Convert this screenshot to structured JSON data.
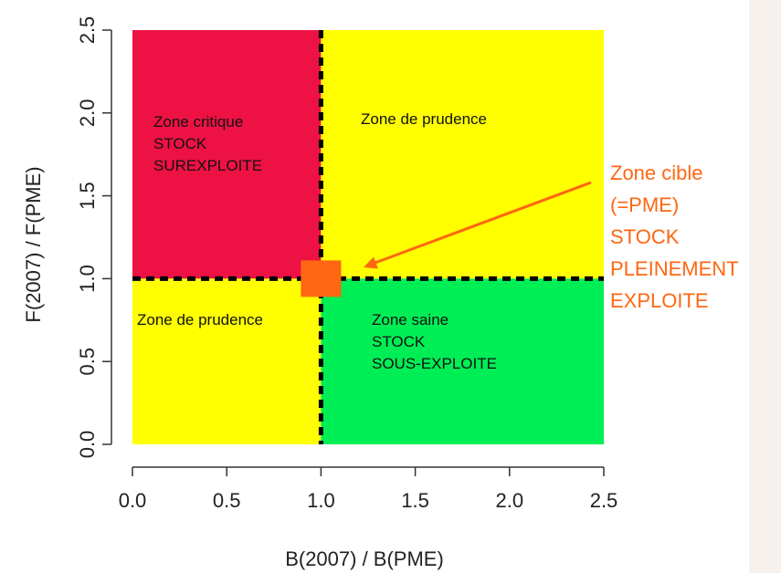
{
  "chart_data": {
    "type": "zone-diagram",
    "xlabel": "B(2007) / B(PME)",
    "ylabel": "F(2007) / F(PME)",
    "xlim": [
      0,
      2.5
    ],
    "ylim": [
      0,
      2.5
    ],
    "x_ticks": [
      "0.0",
      "0.5",
      "1.0",
      "1.5",
      "2.0",
      "2.5"
    ],
    "y_ticks": [
      "0.0",
      "0.5",
      "1.0",
      "1.5",
      "2.0",
      "2.5"
    ],
    "reference": {
      "x": 1.0,
      "y": 1.0,
      "style": "dashed"
    },
    "zones": [
      {
        "x0": 0,
        "x1": 1,
        "y0": 1,
        "y1": 2.5,
        "color": "#ee1144",
        "lines": [
          "Zone critique",
          "STOCK",
          "SUREXPLOITE"
        ]
      },
      {
        "x0": 1,
        "x1": 2.5,
        "y0": 1,
        "y1": 2.5,
        "color": "#ffff00",
        "lines": [
          "Zone de prudence"
        ]
      },
      {
        "x0": 0,
        "x1": 1,
        "y0": 0,
        "y1": 1,
        "color": "#ffff00",
        "lines": [
          "Zone de prudence"
        ]
      },
      {
        "x0": 1,
        "x1": 2.5,
        "y0": 0,
        "y1": 1,
        "color": "#00ee55",
        "lines": [
          "Zone saine",
          "STOCK",
          "SOUS-EXPLOITE"
        ]
      }
    ],
    "target": {
      "x": 1.0,
      "y": 1.0,
      "color": "#ff6611",
      "lines": [
        "Zone cible",
        "(=PME)",
        "STOCK",
        "PLEINEMENT",
        "EXPLOITE"
      ]
    }
  }
}
